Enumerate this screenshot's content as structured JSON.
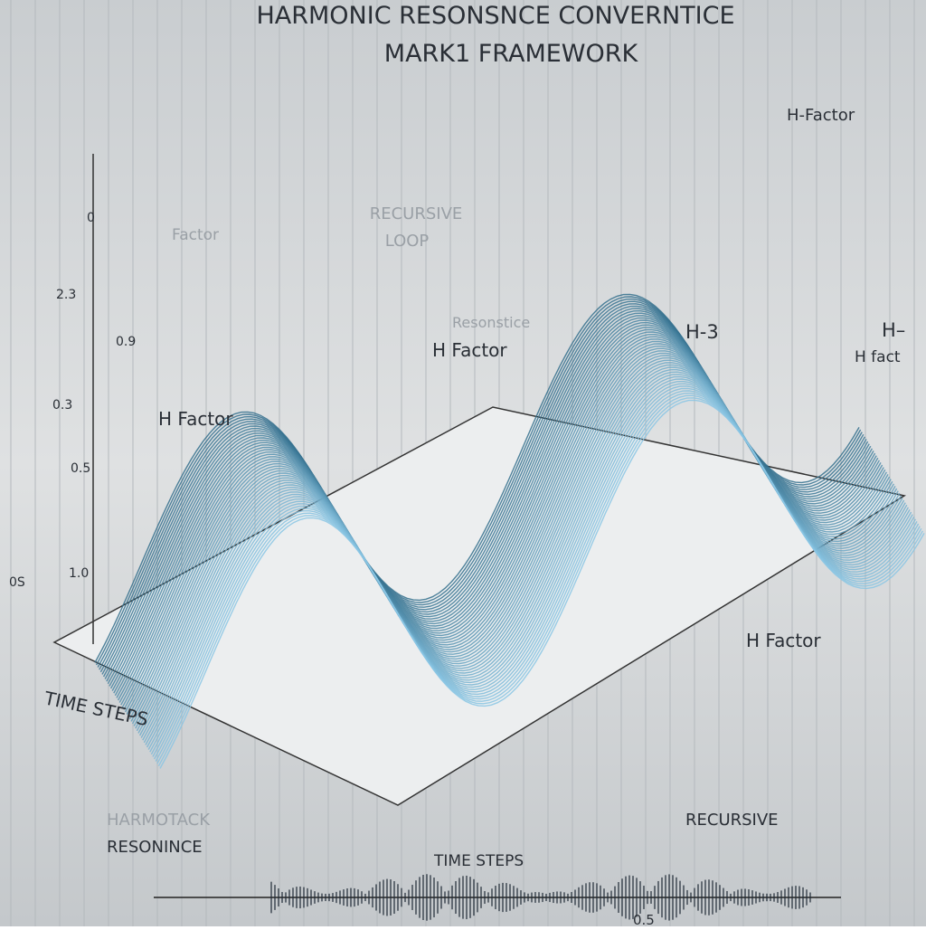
{
  "header": {
    "title_line1": "HARMONIC RESONSNCE CONVERNTICE",
    "title_line2": "MARK1 FRAMEWORK"
  },
  "labels": {
    "top_right": "H-Factor",
    "left_factor": "Factor",
    "recursive_loop_1": "RECURSIVE",
    "recursive_loop_2": "LOOP",
    "resonstice": "Resonstice",
    "h_factor_mid": "H Factor",
    "h3": "H-3",
    "h_dash": "H–",
    "h_fact": "H fact",
    "h_factor_left": "H Factor",
    "h_factor_right": "H Factor",
    "time_steps_axis": "TIME STEPS",
    "harmotack": "HARMOTACK",
    "resonince": "RESONINCE",
    "recursive_bottom": "RECURSIVE",
    "time_steps_bottom": "TIME STEPS",
    "bottom_value": "0.5"
  },
  "axis_labels": [
    "0",
    "2.3",
    "0.9",
    "0.3",
    "0.5",
    "1.0",
    "0S"
  ]
}
